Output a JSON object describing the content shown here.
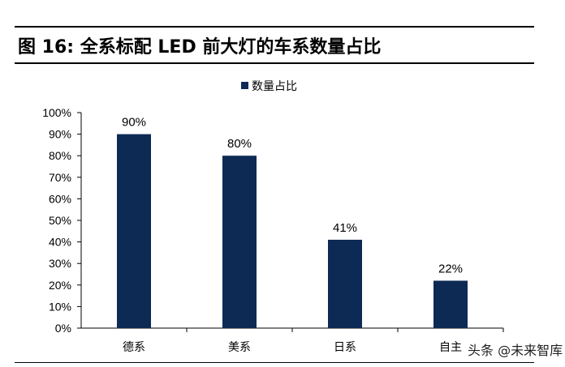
{
  "title": "图 16:  全系标配 LED 前大灯的车系数量占比",
  "watermark": "头条 @未来智库",
  "chart_data": {
    "type": "bar",
    "categories": [
      "德系",
      "美系",
      "日系",
      "自主"
    ],
    "series": [
      {
        "name": "数量占比",
        "values": [
          90,
          80,
          41,
          22
        ],
        "labels": [
          "90%",
          "80%",
          "41%",
          "22%"
        ]
      }
    ],
    "yticks": [
      "0%",
      "10%",
      "20%",
      "30%",
      "40%",
      "50%",
      "60%",
      "70%",
      "80%",
      "90%",
      "100%"
    ],
    "ylim": [
      0,
      100
    ],
    "legend": "top-center",
    "grid": false,
    "color": "#0d2a55"
  }
}
